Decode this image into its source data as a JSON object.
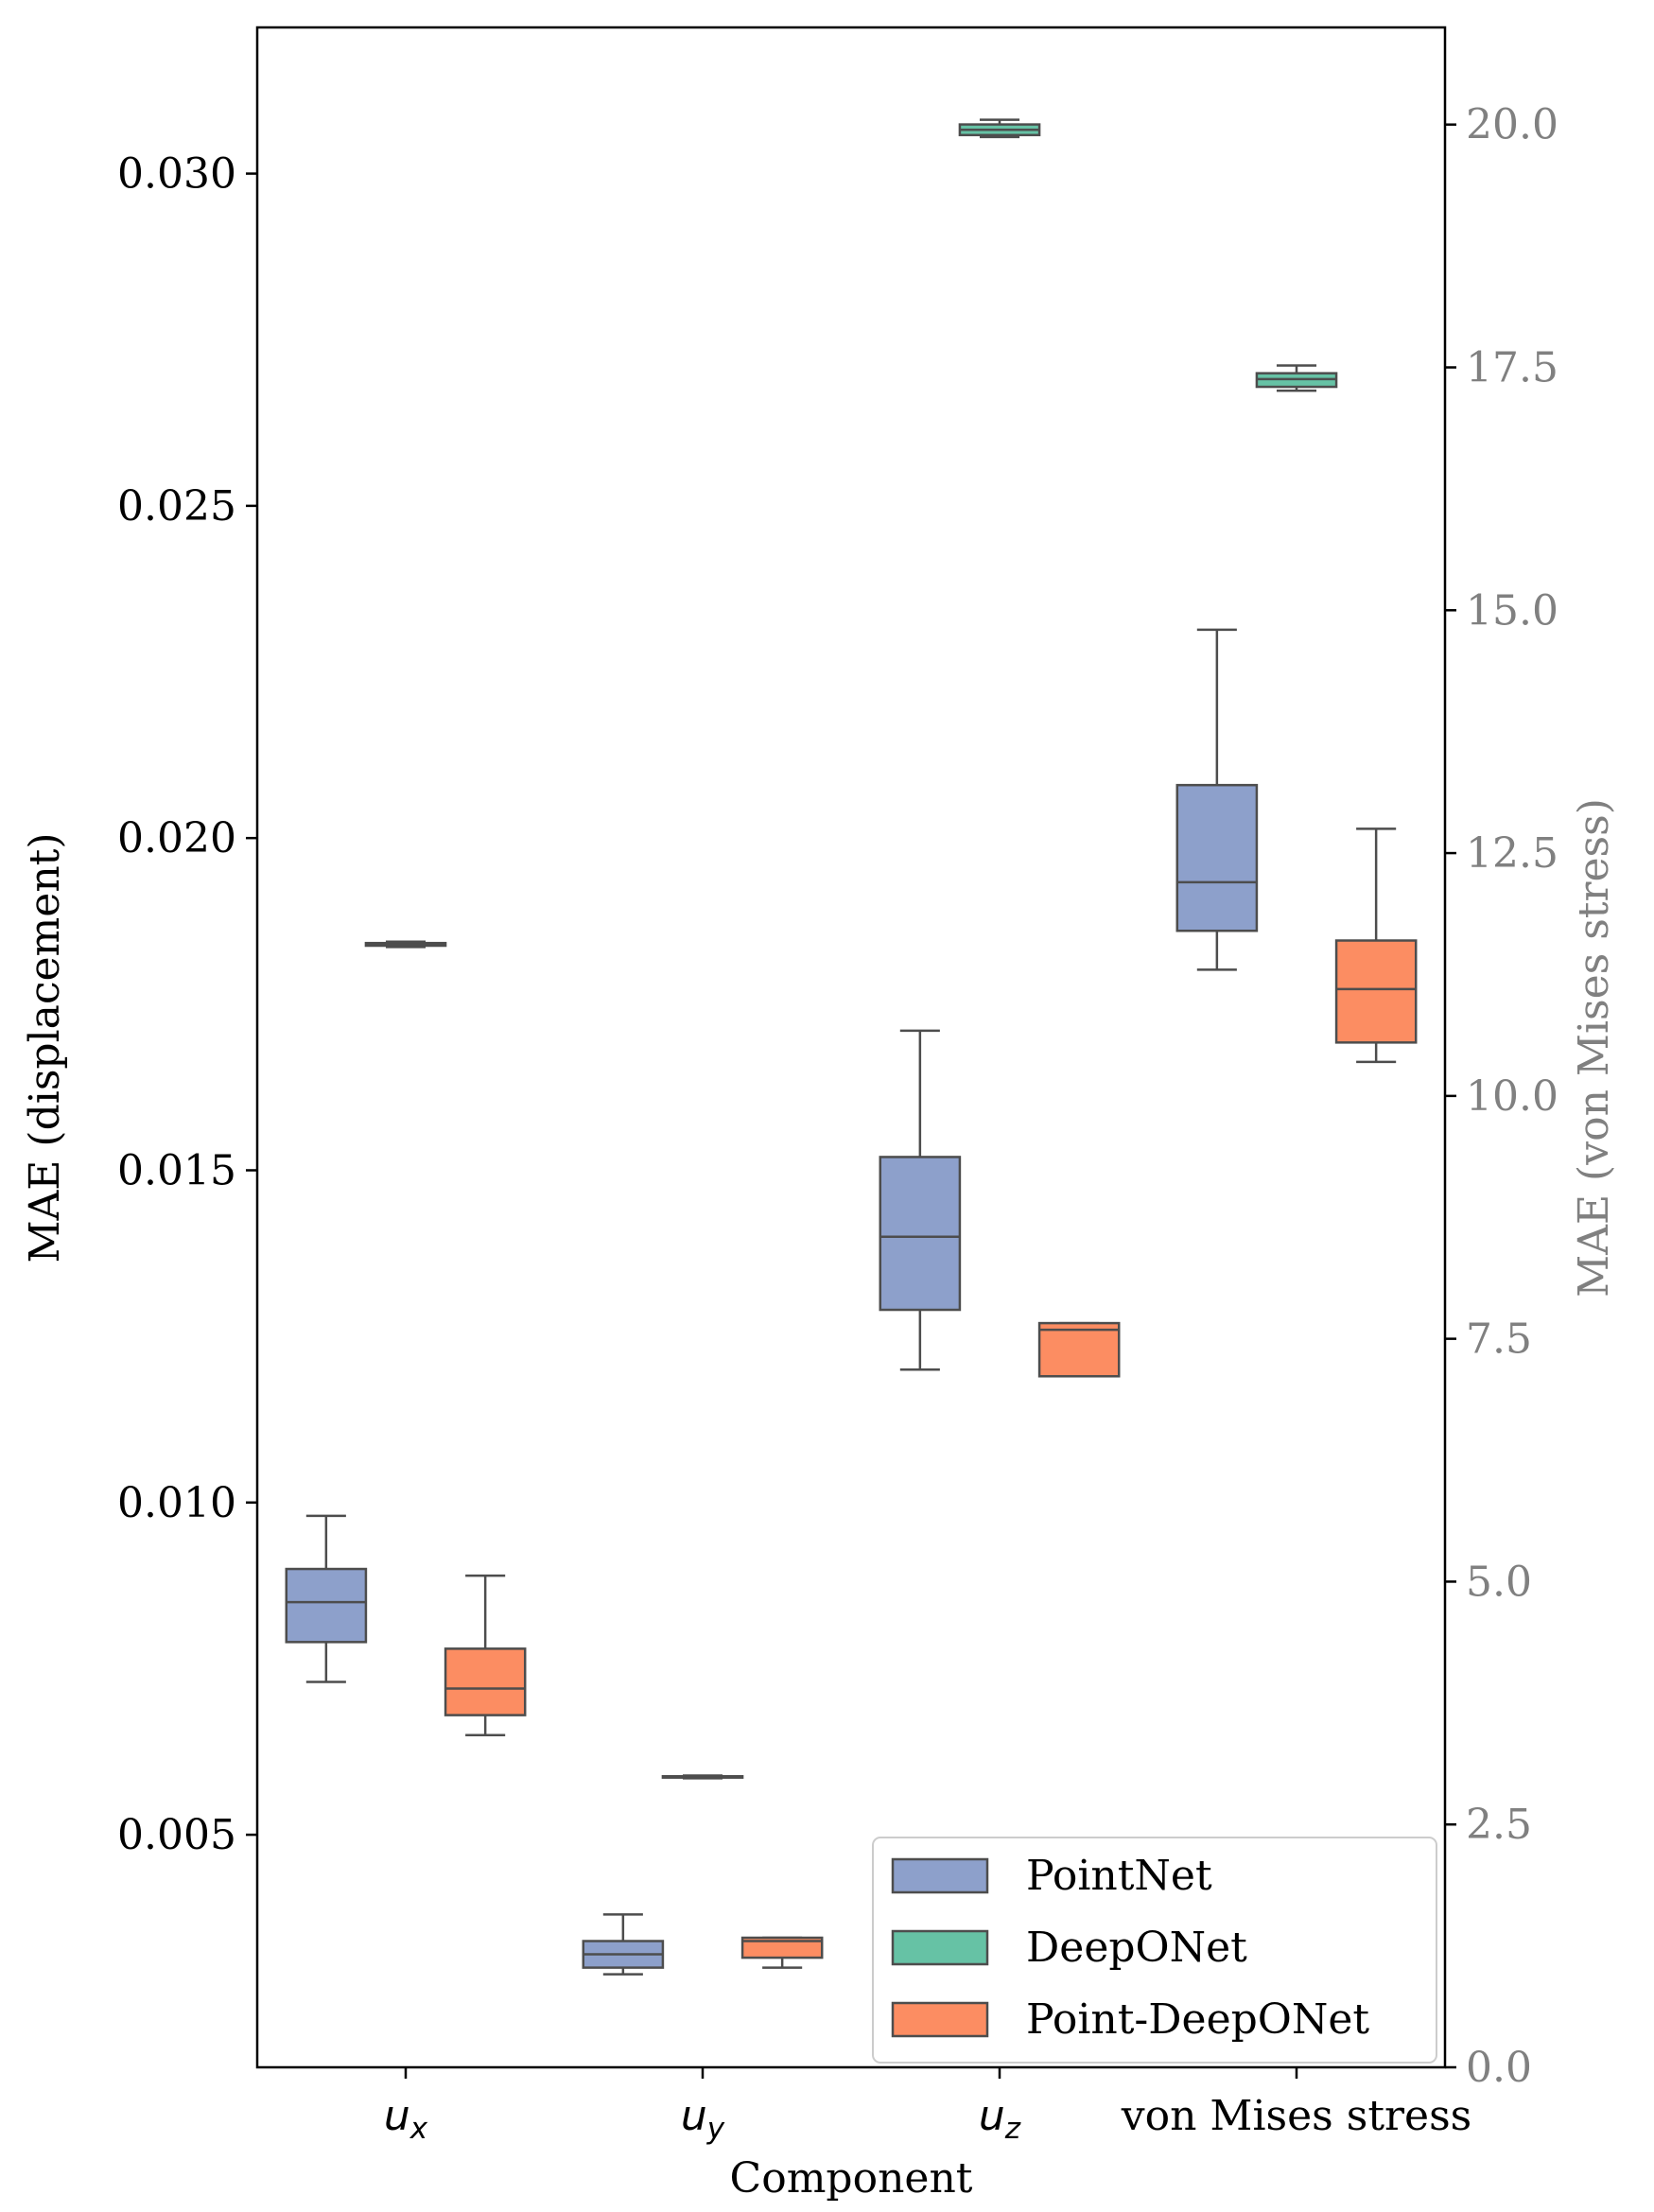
{
  "chart_data": {
    "type": "box",
    "xlabel": "Component",
    "ylabel_left": "MAE (displacement)",
    "ylabel_right": "MAE (von Mises stress)",
    "ylim_left": [
      0.0015,
      0.0322
    ],
    "ylim_right": [
      0.0,
      21.0
    ],
    "yticks_left": [
      0.005,
      0.01,
      0.015,
      0.02,
      0.025,
      0.03
    ],
    "ytick_labels_left": [
      "0.005",
      "0.010",
      "0.015",
      "0.020",
      "0.025",
      "0.030"
    ],
    "yticks_right": [
      0.0,
      2.5,
      5.0,
      7.5,
      10.0,
      12.5,
      15.0,
      17.5,
      20.0
    ],
    "ytick_labels_right": [
      "0.0",
      "2.5",
      "5.0",
      "7.5",
      "10.0",
      "12.5",
      "15.0",
      "17.5",
      "20.0"
    ],
    "categories": [
      "u_x",
      "u_y",
      "u_z",
      "von Mises stress"
    ],
    "category_labels": [
      {
        "base": "u",
        "sub": "x"
      },
      {
        "base": "u",
        "sub": "y"
      },
      {
        "base": "u",
        "sub": "z"
      },
      {
        "base": "von Mises stress",
        "sub": ""
      }
    ],
    "category_axis": [
      "left",
      "left",
      "left",
      "right"
    ],
    "legend": {
      "position": "lower right",
      "entries": [
        "PointNet",
        "DeepONet",
        "Point-DeepONet"
      ]
    },
    "series": [
      {
        "name": "PointNet",
        "color": "#8da0cb",
        "boxes": [
          {
            "whislo": 0.0073,
            "q1": 0.0079,
            "med": 0.0085,
            "q3": 0.009,
            "whishi": 0.0098
          },
          {
            "whislo": 0.0029,
            "q1": 0.003,
            "med": 0.0032,
            "q3": 0.0034,
            "whishi": 0.0038
          },
          {
            "whislo": 0.012,
            "q1": 0.0129,
            "med": 0.014,
            "q3": 0.0152,
            "whishi": 0.0171
          },
          {
            "whislo": 11.3,
            "q1": 11.7,
            "med": 12.2,
            "q3": 13.2,
            "whishi": 14.8
          }
        ]
      },
      {
        "name": "DeepONet",
        "color": "#66c2a5",
        "boxes": [
          {
            "whislo": 0.01836,
            "q1": 0.01838,
            "med": 0.0184,
            "q3": 0.01842,
            "whishi": 0.01844
          },
          {
            "whislo": 0.00585,
            "q1": 0.00586,
            "med": 0.00587,
            "q3": 0.00588,
            "whishi": 0.00589
          },
          {
            "whislo": 0.03055,
            "q1": 0.03058,
            "med": 0.03066,
            "q3": 0.03074,
            "whishi": 0.03081
          },
          {
            "whislo": 17.26,
            "q1": 17.3,
            "med": 17.38,
            "q3": 17.44,
            "whishi": 17.52
          }
        ]
      },
      {
        "name": "Point-DeepONet",
        "color": "#fc8d62",
        "boxes": [
          {
            "whislo": 0.0065,
            "q1": 0.0068,
            "med": 0.0072,
            "q3": 0.0078,
            "whishi": 0.0089
          },
          {
            "whislo": 0.003,
            "q1": 0.00315,
            "med": 0.0034,
            "q3": 0.00345,
            "whishi": 0.00345
          },
          {
            "whislo": 0.0119,
            "q1": 0.0119,
            "med": 0.0126,
            "q3": 0.0127,
            "whishi": 0.0127
          },
          {
            "whislo": 10.35,
            "q1": 10.55,
            "med": 11.1,
            "q3": 11.6,
            "whishi": 12.75
          }
        ]
      }
    ]
  }
}
